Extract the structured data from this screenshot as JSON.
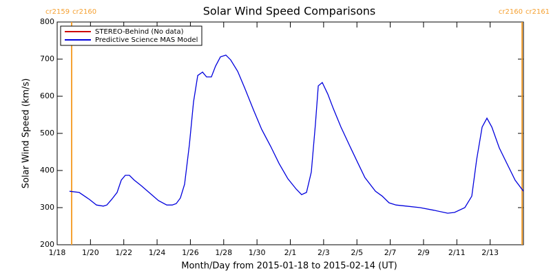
{
  "chart_data": {
    "type": "line",
    "title": "Solar Wind Speed Comparisons",
    "xlabel": "Month/Day from 2015-01-18 to 2015-02-14 (UT)",
    "ylabel": "Solar Wind Speed (km/s)",
    "xlim": [
      0,
      28
    ],
    "ylim": [
      200,
      800
    ],
    "xticks": [
      {
        "value": 0,
        "label": "1/18"
      },
      {
        "value": 2,
        "label": "1/20"
      },
      {
        "value": 4,
        "label": "1/22"
      },
      {
        "value": 6,
        "label": "1/24"
      },
      {
        "value": 8,
        "label": "1/26"
      },
      {
        "value": 10,
        "label": "1/28"
      },
      {
        "value": 12,
        "label": "1/30"
      },
      {
        "value": 14,
        "label": "2/1"
      },
      {
        "value": 16,
        "label": "2/3"
      },
      {
        "value": 18,
        "label": "2/5"
      },
      {
        "value": 20,
        "label": "2/7"
      },
      {
        "value": 22,
        "label": "2/9"
      },
      {
        "value": 24,
        "label": "2/11"
      },
      {
        "value": 26,
        "label": "2/13"
      }
    ],
    "yticks": [
      200,
      300,
      400,
      500,
      600,
      700,
      800
    ],
    "legend": "top-left",
    "markers": [
      {
        "x": 0.87,
        "labels": [
          "cr2159",
          "cr2160"
        ],
        "color": "#f5a030"
      },
      {
        "x": 27.92,
        "labels": [
          "cr2160",
          "cr2161"
        ],
        "color": "#f5a030"
      }
    ],
    "series": [
      {
        "name": "STEREO-Behind (No data)",
        "color": "#cc0000",
        "x": [],
        "values": []
      },
      {
        "name": "Predictive Science MAS Model",
        "color": "#0000dd",
        "x": [
          0.74,
          1.32,
          1.94,
          2.36,
          2.77,
          2.98,
          3.27,
          3.6,
          3.85,
          4.09,
          4.34,
          4.63,
          5.05,
          5.67,
          6.08,
          6.58,
          6.91,
          7.15,
          7.4,
          7.65,
          7.94,
          8.19,
          8.44,
          8.73,
          8.97,
          9.26,
          9.51,
          9.8,
          10.13,
          10.42,
          10.84,
          11.29,
          11.79,
          12.28,
          12.82,
          13.32,
          13.85,
          14.35,
          14.68,
          14.97,
          15.26,
          15.51,
          15.68,
          15.92,
          16.25,
          16.58,
          17.04,
          17.58,
          18.07,
          18.48,
          19.11,
          19.52,
          19.93,
          20.35,
          20.97,
          21.79,
          22.62,
          23.45,
          23.86,
          24.48,
          24.9,
          25.19,
          25.52,
          25.81,
          26.1,
          26.55,
          27.05,
          27.5,
          28
        ],
        "values": [
          344,
          341,
          322,
          307,
          304,
          307,
          322,
          341,
          374,
          387,
          387,
          374,
          359,
          335,
          319,
          307,
          307,
          311,
          326,
          363,
          470,
          585,
          656,
          665,
          652,
          652,
          681,
          706,
          711,
          698,
          667,
          619,
          563,
          511,
          465,
          419,
          378,
          350,
          335,
          341,
          396,
          526,
          628,
          637,
          606,
          567,
          517,
          465,
          419,
          381,
          344,
          331,
          313,
          307,
          304,
          300,
          293,
          285,
          287,
          300,
          331,
          430,
          517,
          541,
          517,
          461,
          415,
          374,
          344
        ]
      }
    ]
  }
}
